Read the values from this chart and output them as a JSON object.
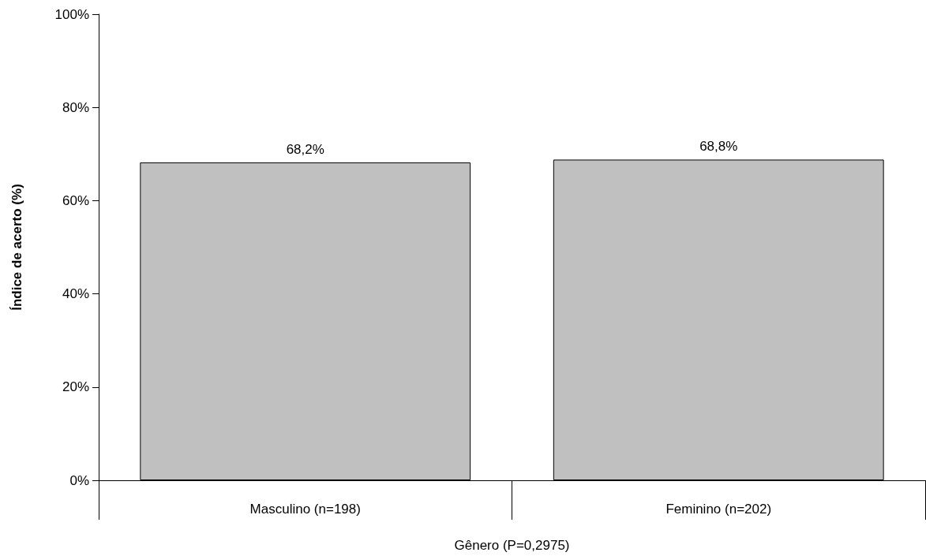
{
  "chart_data": {
    "type": "bar",
    "xlabel": "Gênero (P=0,2975)",
    "ylabel": "Índice de acerto (%)",
    "categories": [
      "Masculino (n=198)",
      "Feminino (n=202)"
    ],
    "values": [
      68.2,
      68.8
    ],
    "value_labels": [
      "68,2%",
      "68,8%"
    ],
    "color": "#c0c0c0",
    "ylim": [
      0,
      100
    ],
    "yticks": [
      {
        "value": 0,
        "label": "0%"
      },
      {
        "value": 20,
        "label": "20%"
      },
      {
        "value": 40,
        "label": "40%"
      },
      {
        "value": 60,
        "label": "60%"
      },
      {
        "value": 80,
        "label": "80%"
      },
      {
        "value": 100,
        "label": "100%"
      }
    ],
    "grid": false
  }
}
